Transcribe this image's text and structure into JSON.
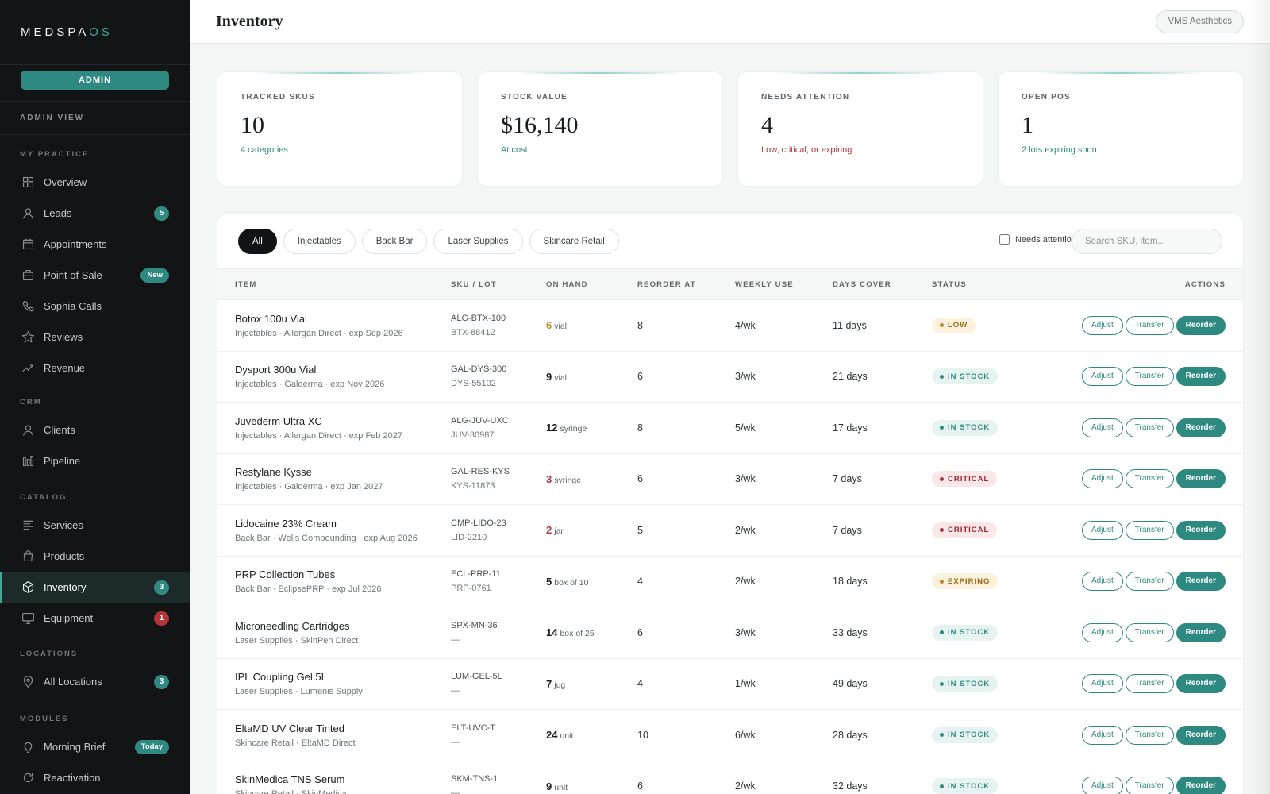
{
  "brand": {
    "part1": "MEDSPA",
    "part2": "OS"
  },
  "sidebar": {
    "admin_button": "ADMIN",
    "view_label": "ADMIN VIEW",
    "sections": [
      {
        "label": "MY PRACTICE",
        "items": [
          {
            "label": "Overview",
            "icon": "grid-icon"
          },
          {
            "label": "Leads",
            "icon": "user-icon",
            "badge": "5"
          },
          {
            "label": "Appointments",
            "icon": "calendar-icon"
          },
          {
            "label": "Point of Sale",
            "icon": "register-icon",
            "badge": "New"
          },
          {
            "label": "Sophia Calls",
            "icon": "phone-icon"
          },
          {
            "label": "Reviews",
            "icon": "star-icon"
          },
          {
            "label": "Revenue",
            "icon": "trend-icon"
          }
        ]
      },
      {
        "label": "CRM",
        "items": [
          {
            "label": "Clients",
            "icon": "client-icon"
          },
          {
            "label": "Pipeline",
            "icon": "bars-icon"
          }
        ]
      },
      {
        "label": "CATALOG",
        "items": [
          {
            "label": "Services",
            "icon": "services-icon"
          },
          {
            "label": "Products",
            "icon": "bag-icon"
          },
          {
            "label": "Inventory",
            "icon": "box-icon",
            "badge": "3"
          },
          {
            "label": "Equipment",
            "icon": "monitor-icon",
            "badge": "1"
          }
        ]
      },
      {
        "label": "LOCATIONS",
        "items": [
          {
            "label": "All Locations",
            "icon": "pin-icon",
            "badge": "3"
          }
        ]
      },
      {
        "label": "MODULES",
        "items": [
          {
            "label": "Morning Brief",
            "icon": "bulb-icon",
            "badge": "Today"
          },
          {
            "label": "Reactivation",
            "icon": "refresh-icon"
          }
        ]
      }
    ]
  },
  "header": {
    "title": "Inventory",
    "org": "VMS Aesthetics"
  },
  "kpis": [
    {
      "label": "TRACKED SKUS",
      "value": "10",
      "sub": "4 categories"
    },
    {
      "label": "STOCK VALUE",
      "value": "$16,140",
      "sub": "At cost"
    },
    {
      "label": "NEEDS ATTENTION",
      "value": "4",
      "sub": "Low, critical, or expiring"
    },
    {
      "label": "OPEN POS",
      "value": "1",
      "sub": "2 lots expiring soon"
    }
  ],
  "filters": {
    "chips": [
      "All",
      "Injectables",
      "Back Bar",
      "Laser Supplies",
      "Skincare Retail"
    ],
    "needs_attention": "Needs attention",
    "search_placeholder": "Search SKU, item..."
  },
  "table": {
    "columns": [
      "ITEM",
      "SKU / LOT",
      "ON HAND",
      "REORDER AT",
      "WEEKLY USE",
      "DAYS COVER",
      "STATUS",
      "ACTIONS"
    ],
    "actions": {
      "adjust": "Adjust",
      "transfer": "Transfer",
      "reorder": "Reorder"
    },
    "rows": [
      {
        "name": "Botox 100u Vial",
        "meta": "Injectables · Allergan Direct · exp Sep 2026",
        "sku": "ALG-BTX-100",
        "lot": "BTX-88412",
        "qty": "6",
        "unit": "vial",
        "reorder": "8",
        "weekly": "4/wk",
        "days": "11 days",
        "status": "LOW"
      },
      {
        "name": "Dysport 300u Vial",
        "meta": "Injectables · Galderma · exp Nov 2026",
        "sku": "GAL-DYS-300",
        "lot": "DYS-55102",
        "qty": "9",
        "unit": "vial",
        "reorder": "6",
        "weekly": "3/wk",
        "days": "21 days",
        "status": "IN STOCK"
      },
      {
        "name": "Juvederm Ultra XC",
        "meta": "Injectables · Allergan Direct · exp Feb 2027",
        "sku": "ALG-JUV-UXC",
        "lot": "JUV-30987",
        "qty": "12",
        "unit": "syringe",
        "reorder": "8",
        "weekly": "5/wk",
        "days": "17 days",
        "status": "IN STOCK"
      },
      {
        "name": "Restylane Kysse",
        "meta": "Injectables · Galderma · exp Jan 2027",
        "sku": "GAL-RES-KYS",
        "lot": "KYS-11873",
        "qty": "3",
        "unit": "syringe",
        "reorder": "6",
        "weekly": "3/wk",
        "days": "7 days",
        "status": "CRITICAL"
      },
      {
        "name": "Lidocaine 23% Cream",
        "meta": "Back Bar · Wells Compounding · exp Aug 2026",
        "sku": "CMP-LIDO-23",
        "lot": "LID-2210",
        "qty": "2",
        "unit": "jar",
        "reorder": "5",
        "weekly": "2/wk",
        "days": "7 days",
        "status": "CRITICAL"
      },
      {
        "name": "PRP Collection Tubes",
        "meta": "Back Bar · EclipsePRP · exp Jul 2026",
        "sku": "ECL-PRP-11",
        "lot": "PRP-0761",
        "qty": "5",
        "unit": "box of 10",
        "reorder": "4",
        "weekly": "2/wk",
        "days": "18 days",
        "status": "EXPIRING"
      },
      {
        "name": "Microneedling Cartridges",
        "meta": "Laser Supplies · SkinPen Direct",
        "sku": "SPX-MN-36",
        "lot": "—",
        "qty": "14",
        "unit": "box of 25",
        "reorder": "6",
        "weekly": "3/wk",
        "days": "33 days",
        "status": "IN STOCK"
      },
      {
        "name": "IPL Coupling Gel 5L",
        "meta": "Laser Supplies · Lumenis Supply",
        "sku": "LUM-GEL-5L",
        "lot": "—",
        "qty": "7",
        "unit": "jug",
        "reorder": "4",
        "weekly": "1/wk",
        "days": "49 days",
        "status": "IN STOCK"
      },
      {
        "name": "EltaMD UV Clear Tinted",
        "meta": "Skincare Retail · EltaMD Direct",
        "sku": "ELT-UVC-T",
        "lot": "—",
        "qty": "24",
        "unit": "unit",
        "reorder": "10",
        "weekly": "6/wk",
        "days": "28 days",
        "status": "IN STOCK"
      },
      {
        "name": "SkinMedica TNS Serum",
        "meta": "Skincare Retail · SkinMedica",
        "sku": "SKM-TNS-1",
        "lot": "—",
        "qty": "9",
        "unit": "unit",
        "reorder": "6",
        "weekly": "2/wk",
        "days": "32 days",
        "status": "IN STOCK"
      }
    ]
  },
  "colors": {
    "accent": "#2e8a80",
    "critical": "#b3333a",
    "low": "#c1872a",
    "sidebar_bg": "#121416"
  }
}
